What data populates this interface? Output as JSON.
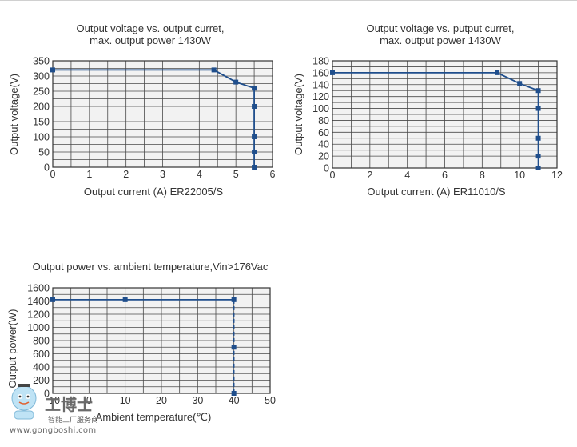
{
  "chart_data": [
    {
      "type": "line",
      "title_lines": [
        "Output voltage vs. output curret,",
        "max. output power 1430W"
      ],
      "xlabel": "Output current (A)  ER22005/S",
      "ylabel": "Output voltage(V)",
      "xlim": [
        0,
        6
      ],
      "ylim": [
        0,
        350
      ],
      "x_ticks": [
        0,
        1,
        2,
        3,
        4,
        5,
        6
      ],
      "y_ticks": [
        0,
        50,
        100,
        150,
        200,
        250,
        300,
        350
      ],
      "x_grid_step": 0.5,
      "y_grid_step": 25,
      "grid": true,
      "color": "#1f4e8c",
      "series": [
        {
          "x": [
            0,
            4.4,
            5,
            5.5,
            5.5,
            5.5,
            5.5,
            5.5
          ],
          "y": [
            320,
            320,
            280,
            260,
            200,
            100,
            50,
            0
          ]
        }
      ]
    },
    {
      "type": "line",
      "title_lines": [
        "Output voltage vs. putput curret,",
        "max. output power 1430W"
      ],
      "xlabel": "Output current (A)  ER11010/S",
      "ylabel": "Output voltage(V)",
      "xlim": [
        0,
        12
      ],
      "ylim": [
        0,
        180
      ],
      "x_ticks": [
        0,
        2,
        4,
        6,
        8,
        10,
        12
      ],
      "y_ticks": [
        0,
        20,
        40,
        60,
        80,
        100,
        120,
        140,
        160,
        180
      ],
      "x_grid_step": 1,
      "y_grid_step": 10,
      "grid": true,
      "color": "#1f4e8c",
      "series": [
        {
          "x": [
            0,
            8.8,
            10,
            11,
            11,
            11,
            11,
            11
          ],
          "y": [
            160,
            160,
            142,
            130,
            100,
            50,
            20,
            0
          ]
        }
      ]
    },
    {
      "type": "line",
      "title_lines": [
        "Output power vs. ambient temperature,Vin>176Vac"
      ],
      "xlabel": "Ambient temperature(℃)",
      "ylabel": "Output power(W)",
      "xlim": [
        -10,
        50
      ],
      "ylim": [
        0,
        1600
      ],
      "x_ticks": [
        -10,
        0,
        10,
        20,
        30,
        40,
        50
      ],
      "y_ticks": [
        0,
        200,
        400,
        600,
        800,
        1000,
        1200,
        1400,
        1600
      ],
      "x_grid_step": 5,
      "y_grid_step": 100,
      "grid": true,
      "color": "#1f4e8c",
      "series": [
        {
          "x": [
            -10,
            10,
            40,
            40,
            40
          ],
          "y": [
            1420,
            1420,
            1420,
            700,
            0
          ]
        }
      ],
      "dashed_from_index": 2
    }
  ],
  "watermark": {
    "brand": "工博士",
    "sub": "智能工厂服务商",
    "site": "www.gongboshi.com"
  }
}
